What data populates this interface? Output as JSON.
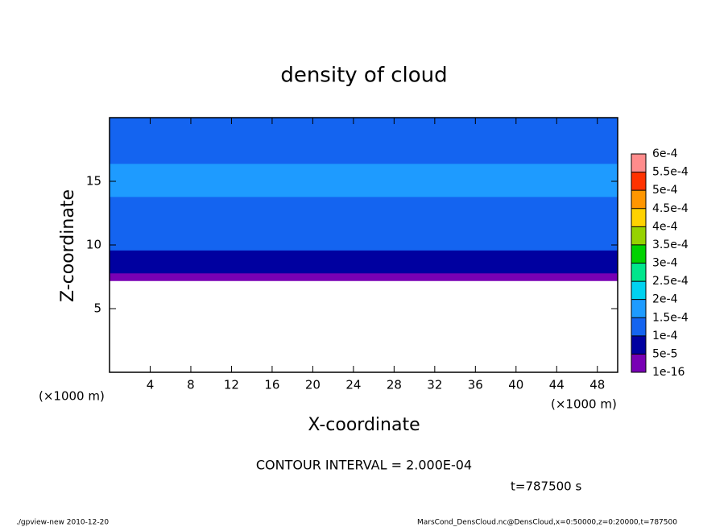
{
  "chart_data": {
    "type": "contour",
    "title": "density of cloud",
    "xlabel": "X-coordinate",
    "ylabel": "Z-coordinate",
    "xunit": "(×1000 m)",
    "yunit": "(×1000 m)",
    "xlim": [
      0,
      50
    ],
    "xticks": [
      4,
      8,
      12,
      16,
      20,
      24,
      28,
      32,
      36,
      40,
      44,
      48
    ],
    "ylim": [
      0,
      20
    ],
    "yticks": [
      5,
      10,
      15
    ],
    "field": {
      "z_edges": [
        7.2,
        7.8,
        8.4,
        9.6,
        10.6,
        13.8,
        16.4,
        20
      ],
      "density": [
        3e-05,
        7e-05,
        8.5e-05,
        0.00012,
        0.00013,
        0.00016,
        0.00013
      ]
    },
    "levels": {
      "ticks": [
        {
          "value": 1e-16,
          "label": "1e-16"
        },
        {
          "value": 5e-05,
          "label": "5e-5"
        },
        {
          "value": 0.0001,
          "label": "1e-4"
        },
        {
          "value": 0.00015,
          "label": "1.5e-4"
        },
        {
          "value": 0.0002,
          "label": "2e-4"
        },
        {
          "value": 0.00025,
          "label": "2.5e-4"
        },
        {
          "value": 0.0003,
          "label": "3e-4"
        },
        {
          "value": 0.00035,
          "label": "3.5e-4"
        },
        {
          "value": 0.0004,
          "label": "4e-4"
        },
        {
          "value": 0.00045,
          "label": "4.5e-4"
        },
        {
          "value": 0.0005,
          "label": "5e-4"
        },
        {
          "value": 0.00055,
          "label": "5.5e-4"
        },
        {
          "value": 0.0006,
          "label": "6e-4"
        }
      ],
      "colors": [
        "#7800b4",
        "#0000a0",
        "#1464f0",
        "#1e9bff",
        "#00d2f0",
        "#00e68c",
        "#00d200",
        "#96d200",
        "#ffd200",
        "#ff9600",
        "#ff3200",
        "#ff8c8c"
      ]
    },
    "contour_interval": "CONTOUR INTERVAL = 2.000E-04",
    "time": "t=787500 s",
    "footer_left": "./gpview-new  2010-12-20",
    "footer_right": "MarsCond_DensCloud.nc@DensCloud,x=0:50000,z=0:20000,t=787500"
  }
}
